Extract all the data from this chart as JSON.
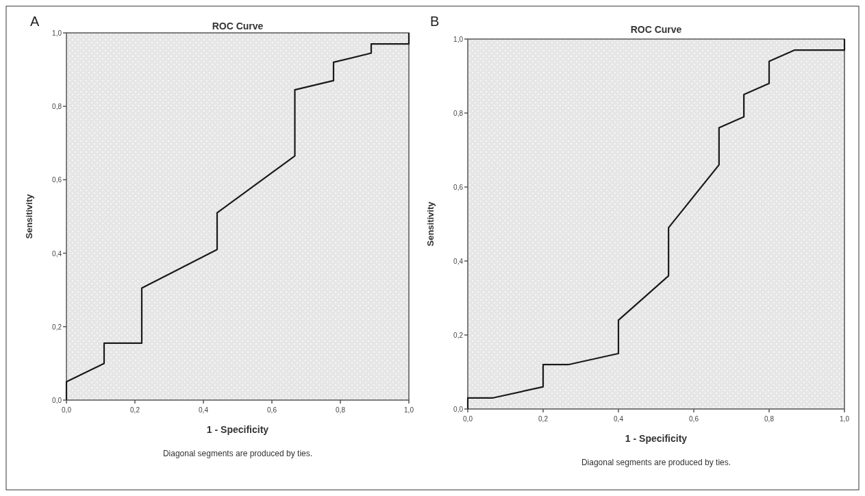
{
  "chart_data": [
    {
      "type": "line",
      "title": "ROC Curve",
      "xlabel": "1 - Specificity",
      "ylabel": "Sensitivity",
      "annotations": [
        "A",
        "Diagonal segments are produced by ties."
      ],
      "xlim": [
        0,
        1
      ],
      "ylim": [
        0,
        1
      ],
      "xticks": [
        {
          "value": 0,
          "label": "0,0"
        },
        {
          "value": 0.2,
          "label": "0,2"
        },
        {
          "value": 0.4,
          "label": "0,4"
        },
        {
          "value": 0.6,
          "label": "0,6"
        },
        {
          "value": 0.8,
          "label": "0,8"
        },
        {
          "value": 1,
          "label": "1,0"
        }
      ],
      "yticks": [
        {
          "value": 0,
          "label": "0,0"
        },
        {
          "value": 0.2,
          "label": "0,2"
        },
        {
          "value": 0.4,
          "label": "0,4"
        },
        {
          "value": 0.6,
          "label": "0,6"
        },
        {
          "value": 0.8,
          "label": "0,8"
        },
        {
          "value": 1,
          "label": "1,0"
        }
      ],
      "series": [
        {
          "color": "#1a1a1a",
          "x": [
            0,
            0,
            0.11,
            0.11,
            0.22,
            0.22,
            0.44,
            0.44,
            0.667,
            0.667,
            0.78,
            0.78,
            0.89,
            0.89,
            1,
            1
          ],
          "values": [
            0,
            0.05,
            0.1,
            0.155,
            0.155,
            0.305,
            0.41,
            0.51,
            0.665,
            0.845,
            0.87,
            0.92,
            0.945,
            0.97,
            0.97,
            1
          ]
        }
      ]
    },
    {
      "type": "line",
      "title": "ROC Curve",
      "xlabel": "1 - Specificity",
      "ylabel": "Sensitivity",
      "annotations": [
        "B",
        "Diagonal segments are produced by ties."
      ],
      "xlim": [
        0,
        1
      ],
      "ylim": [
        0,
        1
      ],
      "xticks": [
        {
          "value": 0,
          "label": "0,0"
        },
        {
          "value": 0.2,
          "label": "0,2"
        },
        {
          "value": 0.4,
          "label": "0,4"
        },
        {
          "value": 0.6,
          "label": "0,6"
        },
        {
          "value": 0.8,
          "label": "0,8"
        },
        {
          "value": 1,
          "label": "1,0"
        }
      ],
      "yticks": [
        {
          "value": 0,
          "label": "0,0"
        },
        {
          "value": 0.2,
          "label": "0,2"
        },
        {
          "value": 0.4,
          "label": "0,4"
        },
        {
          "value": 0.6,
          "label": "0,6"
        },
        {
          "value": 0.8,
          "label": "0,8"
        },
        {
          "value": 1,
          "label": "1,0"
        }
      ],
      "series": [
        {
          "color": "#1a1a1a",
          "x": [
            0,
            0,
            0.067,
            0.2,
            0.2,
            0.267,
            0.4,
            0.4,
            0.533,
            0.533,
            0.667,
            0.667,
            0.733,
            0.733,
            0.8,
            0.8,
            0.867,
            1,
            1
          ],
          "values": [
            0,
            0.03,
            0.03,
            0.06,
            0.12,
            0.12,
            0.15,
            0.24,
            0.36,
            0.49,
            0.66,
            0.76,
            0.79,
            0.85,
            0.88,
            0.94,
            0.97,
            0.97,
            1
          ]
        }
      ]
    }
  ]
}
